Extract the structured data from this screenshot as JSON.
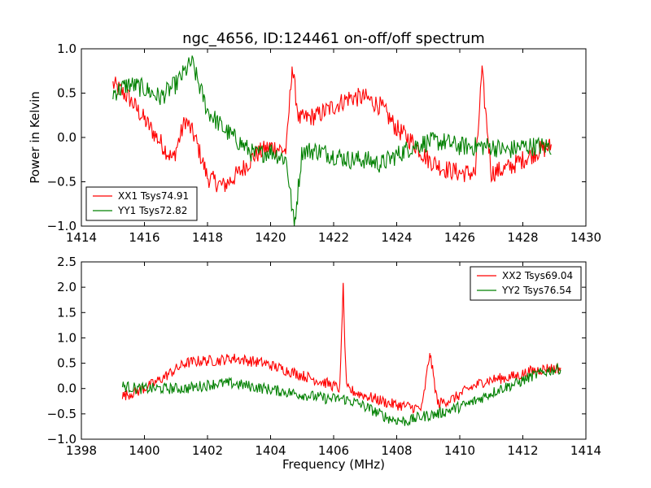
{
  "chart_data": [
    {
      "type": "line",
      "title": "ngc_4656, ID:124461 on-off/off spectrum",
      "xlabel": "",
      "ylabel": "Power in Kelvin",
      "xlim": [
        1414,
        1430
      ],
      "ylim": [
        -1.0,
        1.0
      ],
      "x_ticks": [
        "1414",
        "1416",
        "1418",
        "1420",
        "1422",
        "1424",
        "1426",
        "1428",
        "1430"
      ],
      "y_ticks": [
        "−1.0",
        "−0.5",
        "0.0",
        "0.5",
        "1.0"
      ],
      "legend_position": "lower-left",
      "grid": false,
      "series": [
        {
          "name": "XX1 Tsys74.91",
          "color": "#ff0000",
          "x": [
            1415.0,
            1415.5,
            1416.0,
            1416.5,
            1416.9,
            1417.3,
            1417.6,
            1418.0,
            1418.5,
            1419.0,
            1419.5,
            1420.0,
            1420.5,
            1420.68,
            1420.9,
            1421.5,
            1422.0,
            1422.5,
            1423.0,
            1423.5,
            1424.0,
            1424.5,
            1425.0,
            1425.5,
            1426.0,
            1426.5,
            1426.7,
            1427.0,
            1427.5,
            1428.0,
            1428.5,
            1428.9
          ],
          "y": [
            0.6,
            0.45,
            0.2,
            -0.05,
            -0.25,
            0.2,
            0.0,
            -0.45,
            -0.55,
            -0.4,
            -0.2,
            -0.1,
            -0.15,
            0.8,
            0.2,
            0.25,
            0.35,
            0.45,
            0.45,
            0.35,
            0.1,
            -0.05,
            -0.25,
            -0.35,
            -0.4,
            -0.4,
            0.75,
            -0.4,
            -0.35,
            -0.25,
            -0.15,
            -0.1
          ]
        },
        {
          "name": "YY1 Tsys72.82",
          "color": "#008000",
          "x": [
            1415.0,
            1415.5,
            1416.0,
            1416.5,
            1417.0,
            1417.5,
            1418.0,
            1418.5,
            1419.0,
            1419.5,
            1420.0,
            1420.5,
            1420.75,
            1421.0,
            1421.5,
            1422.0,
            1422.5,
            1423.0,
            1423.5,
            1424.0,
            1424.5,
            1425.0,
            1425.5,
            1426.0,
            1426.5,
            1427.0,
            1427.5,
            1428.0,
            1428.5,
            1428.9
          ],
          "y": [
            0.5,
            0.6,
            0.55,
            0.45,
            0.6,
            0.85,
            0.3,
            0.1,
            -0.05,
            -0.2,
            -0.15,
            -0.25,
            -1.0,
            -0.15,
            -0.15,
            -0.2,
            -0.25,
            -0.25,
            -0.3,
            -0.2,
            -0.1,
            -0.05,
            -0.05,
            -0.1,
            -0.1,
            -0.1,
            -0.15,
            -0.1,
            -0.1,
            -0.1
          ]
        }
      ]
    },
    {
      "type": "line",
      "title": "",
      "xlabel": "Frequency (MHz)",
      "ylabel": "",
      "xlim": [
        1398,
        1414
      ],
      "ylim": [
        -1.0,
        2.5
      ],
      "x_ticks": [
        "1398",
        "1400",
        "1402",
        "1404",
        "1406",
        "1408",
        "1410",
        "1412",
        "1414"
      ],
      "y_ticks": [
        "−1.0",
        "−0.5",
        "0.0",
        "0.5",
        "1.0",
        "1.5",
        "2.0",
        "2.5"
      ],
      "legend_position": "upper-right",
      "grid": false,
      "series": [
        {
          "name": "XX2 Tsys69.04",
          "color": "#ff0000",
          "x": [
            1399.3,
            1399.8,
            1400.3,
            1400.8,
            1401.3,
            1401.8,
            1402.3,
            1402.8,
            1403.3,
            1403.8,
            1404.3,
            1404.8,
            1405.3,
            1405.8,
            1406.2,
            1406.3,
            1406.4,
            1406.8,
            1407.3,
            1407.8,
            1408.3,
            1408.8,
            1409.05,
            1409.3,
            1409.8,
            1410.3,
            1410.8,
            1411.3,
            1411.8,
            1412.3,
            1412.8,
            1413.2
          ],
          "y": [
            -0.15,
            -0.05,
            0.1,
            0.3,
            0.5,
            0.55,
            0.55,
            0.6,
            0.55,
            0.5,
            0.4,
            0.3,
            0.2,
            0.1,
            0.0,
            2.05,
            0.0,
            -0.1,
            -0.2,
            -0.3,
            -0.35,
            -0.4,
            0.7,
            -0.3,
            -0.2,
            0.0,
            0.15,
            0.2,
            0.25,
            0.35,
            0.4,
            0.4
          ]
        },
        {
          "name": "YY2 Tsys76.54",
          "color": "#008000",
          "x": [
            1399.3,
            1399.8,
            1400.3,
            1400.8,
            1401.3,
            1401.8,
            1402.3,
            1402.8,
            1403.3,
            1403.8,
            1404.3,
            1404.8,
            1405.3,
            1405.8,
            1406.3,
            1406.8,
            1407.3,
            1407.8,
            1408.3,
            1408.8,
            1409.3,
            1409.8,
            1410.3,
            1410.8,
            1411.3,
            1411.8,
            1412.3,
            1412.8,
            1413.2
          ],
          "y": [
            0.05,
            0.0,
            0.0,
            0.0,
            0.0,
            0.05,
            0.1,
            0.1,
            0.05,
            0.0,
            -0.05,
            -0.1,
            -0.15,
            -0.2,
            -0.2,
            -0.3,
            -0.45,
            -0.6,
            -0.65,
            -0.55,
            -0.5,
            -0.4,
            -0.3,
            -0.15,
            0.0,
            0.1,
            0.25,
            0.35,
            0.4
          ]
        }
      ]
    }
  ]
}
